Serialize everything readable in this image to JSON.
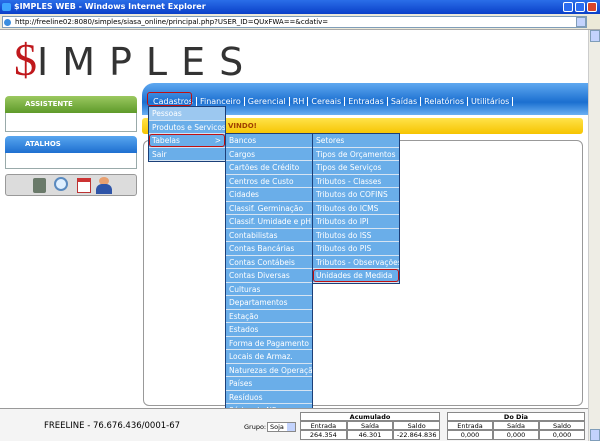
{
  "window": {
    "title": "$IMPLES WEB - Windows Internet Explorer",
    "address": "http://freeline02:8080/simples/siasa_online/principal.php?USER_ID=QUxFWA==&cdativ="
  },
  "logo": {
    "symbol": "$",
    "text": "IMPLES"
  },
  "menubar": [
    "Cadastros",
    "Financeiro",
    "Gerencial",
    "RH",
    "Cereais",
    "Entradas",
    "Saídas",
    "Relatórios",
    "Utilitários"
  ],
  "sidebar": {
    "assistant": "ASSISTENTE",
    "shortcuts": "ATALHOS"
  },
  "welcome": "VINDO!",
  "menu_cadastros": {
    "items": [
      "Pessoas",
      "Produtos e Servicos",
      "Tabelas",
      "Sair"
    ],
    "submenu_indicator": ">"
  },
  "menu_tabelas": [
    "Bancos",
    "Cargos",
    "Cartões de Crédito",
    "Centros de Custo",
    "Cidades",
    "Classif. Germinação",
    "Classif. Umidade e pH",
    "Contabilistas",
    "Contas Bancárias",
    "Contas Contábeis",
    "Contas Diversas",
    "Culturas",
    "Departamentos",
    "Estação",
    "Estados",
    "Forma de Pagamento",
    "Locais de Armaz.",
    "Naturezas de Operação",
    "Países",
    "Resíduos",
    "Séries de NF"
  ],
  "menu_tabelas_2": [
    "Setores",
    "Tipos de Orçamentos",
    "Tipos de Serviços",
    "Tributos - Classes",
    "Tributos do COFINS",
    "Tributos do ICMS",
    "Tributos do IPI",
    "Tributos do ISS",
    "Tributos do PIS",
    "Tributos - Observações",
    "Unidades de Medida"
  ],
  "footer": {
    "company": "FREELINE - 76.676.436/0001-67",
    "group_label": "Grupo:",
    "group_value": "Soja",
    "accumulated": {
      "title": "Acumulado",
      "columns": [
        "Entrada",
        "Saída",
        "Saldo"
      ],
      "values": [
        "264.354",
        "46.301",
        "-22.864.836"
      ]
    },
    "daily": {
      "title": "Do Dia",
      "columns": [
        "Entrada",
        "Saída",
        "Saldo"
      ],
      "values": [
        "0,000",
        "0,000",
        "0,000"
      ]
    }
  }
}
